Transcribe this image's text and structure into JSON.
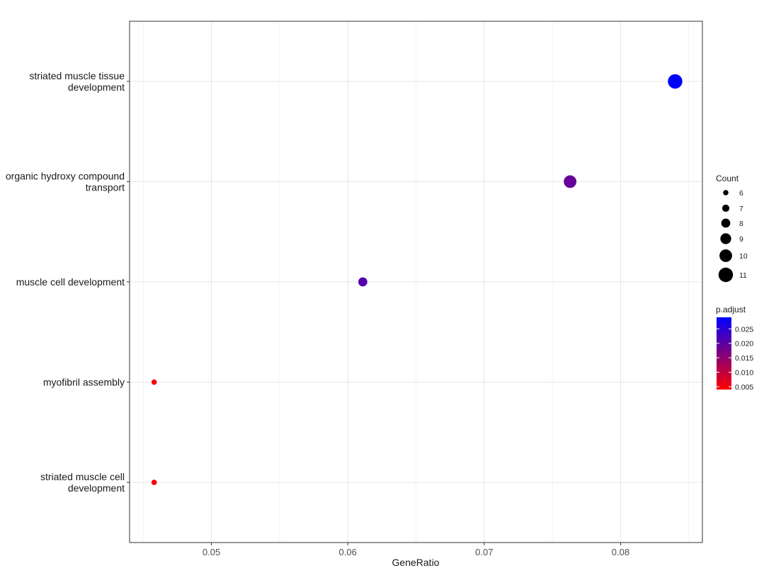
{
  "chart_data": {
    "type": "scatter",
    "title": "",
    "xlabel": "GeneRatio",
    "ylabel": "",
    "xlim": [
      0.044,
      0.086
    ],
    "x_ticks": [
      0.05,
      0.06,
      0.07,
      0.08
    ],
    "x_tick_labels": [
      "0.05",
      "0.06",
      "0.07",
      "0.08"
    ],
    "grid": true,
    "categories": [
      "striated muscle tissue development",
      "organic hydroxy compound transport",
      "muscle cell development",
      "myofibril assembly",
      "striated muscle cell development"
    ],
    "category_label_lines": [
      [
        "striated muscle tissue",
        "development"
      ],
      [
        "organic hydroxy compound",
        "transport"
      ],
      [
        "muscle cell development"
      ],
      [
        "myofibril assembly"
      ],
      [
        "striated muscle cell",
        "development"
      ]
    ],
    "points": [
      {
        "category": "striated muscle tissue development",
        "x": 0.084,
        "count": 11,
        "p_adjust": 0.029
      },
      {
        "category": "organic hydroxy compound transport",
        "x": 0.0763,
        "count": 10,
        "p_adjust": 0.019
      },
      {
        "category": "muscle cell development",
        "x": 0.0611,
        "count": 8,
        "p_adjust": 0.021
      },
      {
        "category": "myofibril assembly",
        "x": 0.0458,
        "count": 6,
        "p_adjust": 0.005
      },
      {
        "category": "striated muscle cell development",
        "x": 0.0458,
        "count": 6,
        "p_adjust": 0.005
      }
    ],
    "size_legend": {
      "title": "Count",
      "values": [
        6,
        7,
        8,
        9,
        10,
        11
      ],
      "labels": [
        "6",
        "7",
        "8",
        "9",
        "10",
        "11"
      ]
    },
    "color_legend": {
      "title": "p.adjust",
      "range": [
        0.004,
        0.029
      ],
      "ticks": [
        0.005,
        0.01,
        0.015,
        0.02,
        0.025
      ],
      "tick_labels": [
        "0.005",
        "0.010",
        "0.015",
        "0.020",
        "0.025"
      ],
      "low_color": "#ff0000",
      "high_color": "#0000ff"
    },
    "legend_position": "right"
  }
}
